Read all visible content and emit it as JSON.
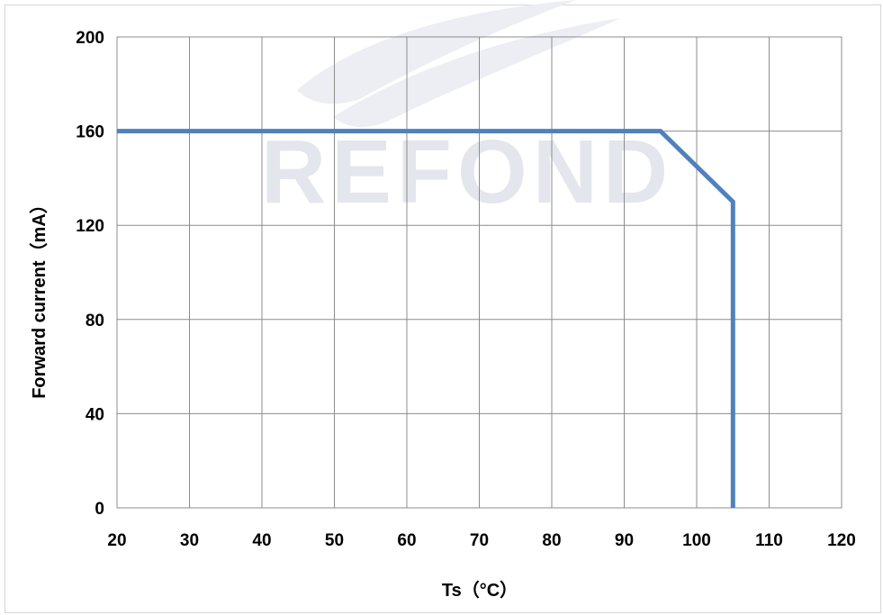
{
  "colors": {
    "series": "#4f81bd",
    "grid": "#8c8c8c",
    "watermark": "#e3e6ec"
  },
  "watermark": {
    "text": "REFOND"
  },
  "chart_data": {
    "type": "line",
    "xlabel": "Ts（°C）",
    "ylabel": "Forward current（mA）",
    "xlim": [
      20,
      120
    ],
    "ylim": [
      0,
      200
    ],
    "x_ticks": [
      20,
      30,
      40,
      50,
      60,
      70,
      80,
      90,
      100,
      110,
      120
    ],
    "y_ticks": [
      0,
      40,
      80,
      120,
      160,
      200
    ],
    "grid": true,
    "legend": "none",
    "series": [
      {
        "x": [
          20,
          95,
          105,
          105
        ],
        "y": [
          160,
          160,
          130,
          0
        ]
      }
    ]
  }
}
